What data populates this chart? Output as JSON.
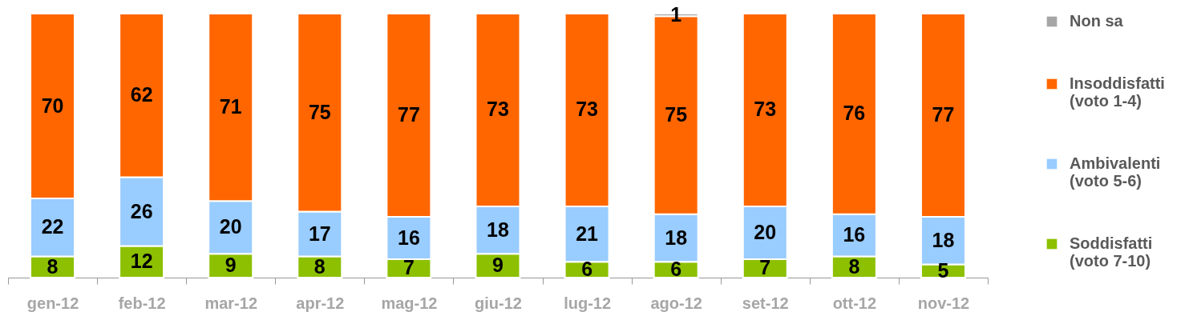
{
  "chart_data": {
    "type": "bar",
    "stacked": true,
    "data_labels": true,
    "legend": "right",
    "tick_labels": "x",
    "ylim": [
      0,
      100
    ],
    "categories": [
      "gen-12",
      "feb-12",
      "mar-12",
      "apr-12",
      "mag-12",
      "giu-12",
      "lug-12",
      "ago-12",
      "set-12",
      "ott-12",
      "nov-12"
    ],
    "series": [
      {
        "name": "Soddisfatti (voto 7-10)",
        "color": "#8cc000",
        "values": [
          8,
          12,
          9,
          8,
          7,
          9,
          6,
          6,
          7,
          8,
          5
        ]
      },
      {
        "name": "Ambivalenti (voto 5-6)",
        "color": "#99ccff",
        "values": [
          22,
          26,
          20,
          17,
          16,
          18,
          21,
          18,
          20,
          16,
          18
        ]
      },
      {
        "name": "Insoddisfatti (voto 1-4)",
        "color": "#ff6600",
        "values": [
          70,
          62,
          71,
          75,
          77,
          73,
          73,
          75,
          73,
          76,
          77
        ]
      },
      {
        "name": "Non sa",
        "color": "#a6a6a6",
        "values": [
          null,
          null,
          null,
          null,
          null,
          null,
          null,
          1,
          null,
          null,
          null
        ]
      }
    ]
  }
}
